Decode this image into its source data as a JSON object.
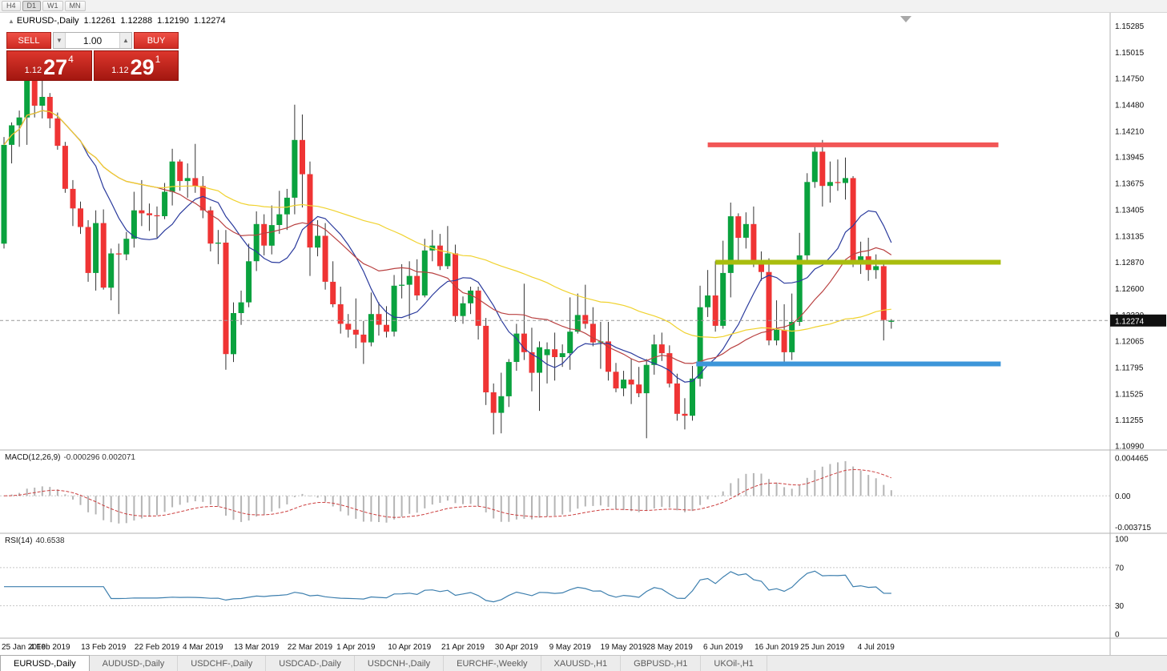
{
  "toolbar": {
    "timeframes": [
      "H4",
      "D1",
      "W1",
      "MN"
    ],
    "active": "D1"
  },
  "chart_header": {
    "collapse_icon": "▲",
    "symbol": "EURUSD-,Daily",
    "open": "1.12261",
    "high": "1.12288",
    "low": "1.12190",
    "close": "1.12274"
  },
  "trade_panel": {
    "sell_label": "SELL",
    "buy_label": "BUY",
    "volume": "1.00",
    "spinner_down_icon": "▼",
    "spinner_up_icon": "▲",
    "bid": {
      "prefix": "1.12",
      "big": "27",
      "pip": "4"
    },
    "ask": {
      "prefix": "1.12",
      "big": "29",
      "pip": "1"
    }
  },
  "price_tag": "1.12274",
  "tabs": [
    {
      "label": "EURUSD-,Daily",
      "active": true
    },
    {
      "label": "AUDUSD-,Daily",
      "active": false
    },
    {
      "label": "USDCHF-,Daily",
      "active": false
    },
    {
      "label": "USDCAD-,Daily",
      "active": false
    },
    {
      "label": "USDCNH-,Daily",
      "active": false
    },
    {
      "label": "EURCHF-,Weekly",
      "active": false
    },
    {
      "label": "XAUUSD-,H1",
      "active": false
    },
    {
      "label": "GBPUSD-,H1",
      "active": false
    },
    {
      "label": "UKOil-,H1",
      "active": false
    }
  ],
  "chart_data": {
    "type": "candlestick",
    "title": "EURUSD-,Daily",
    "ylim": [
      1.1095,
      1.1542
    ],
    "current_price": 1.12274,
    "price_ticks": [
      "1.15285",
      "1.15015",
      "1.14750",
      "1.14480",
      "1.14210",
      "1.13945",
      "1.13675",
      "1.13405",
      "1.13135",
      "1.12870",
      "1.12600",
      "1.12330",
      "1.12065",
      "1.11795",
      "1.11525",
      "1.11255",
      "1.10990"
    ],
    "date_ticks": [
      {
        "i": 0,
        "label": "25 Jan 2019"
      },
      {
        "i": 6,
        "label": "4 Feb 2019"
      },
      {
        "i": 13,
        "label": "13 Feb 2019"
      },
      {
        "i": 20,
        "label": "22 Feb 2019"
      },
      {
        "i": 26,
        "label": "4 Mar 2019"
      },
      {
        "i": 33,
        "label": "13 Mar 2019"
      },
      {
        "i": 40,
        "label": "22 Mar 2019"
      },
      {
        "i": 46,
        "label": "1 Apr 2019"
      },
      {
        "i": 53,
        "label": "10 Apr 2019"
      },
      {
        "i": 60,
        "label": "21 Apr 2019"
      },
      {
        "i": 67,
        "label": "30 Apr 2019"
      },
      {
        "i": 74,
        "label": "9 May 2019"
      },
      {
        "i": 81,
        "label": "19 May 2019"
      },
      {
        "i": 87,
        "label": "28 May 2019"
      },
      {
        "i": 94,
        "label": "6 Jun 2019"
      },
      {
        "i": 101,
        "label": "16 Jun 2019"
      },
      {
        "i": 107,
        "label": "25 Jun 2019"
      },
      {
        "i": 114,
        "label": "4 Jul 2019"
      }
    ],
    "candles": [
      [
        1.1306,
        1.1415,
        1.1301,
        1.1407
      ],
      [
        1.1407,
        1.143,
        1.1388,
        1.1427
      ],
      [
        1.1427,
        1.1442,
        1.1405,
        1.1435
      ],
      [
        1.1435,
        1.1488,
        1.1407,
        1.148
      ],
      [
        1.148,
        1.1489,
        1.1435,
        1.1447
      ],
      [
        1.1447,
        1.1484,
        1.1434,
        1.1456
      ],
      [
        1.1456,
        1.146,
        1.1424,
        1.1434
      ],
      [
        1.1434,
        1.144,
        1.1402,
        1.1406
      ],
      [
        1.1406,
        1.141,
        1.1358,
        1.1362
      ],
      [
        1.1362,
        1.1371,
        1.1324,
        1.1342
      ],
      [
        1.1342,
        1.1349,
        1.1316,
        1.1323
      ],
      [
        1.1323,
        1.133,
        1.1267,
        1.1276
      ],
      [
        1.1276,
        1.134,
        1.1258,
        1.1327
      ],
      [
        1.1327,
        1.1341,
        1.1259,
        1.1261
      ],
      [
        1.1261,
        1.1301,
        1.1248,
        1.1296
      ],
      [
        1.1296,
        1.1306,
        1.1234,
        1.1295
      ],
      [
        1.1295,
        1.1318,
        1.1289,
        1.1311
      ],
      [
        1.1311,
        1.1359,
        1.1302,
        1.134
      ],
      [
        1.134,
        1.1371,
        1.1324,
        1.1337
      ],
      [
        1.1337,
        1.1347,
        1.1319,
        1.1335
      ],
      [
        1.1335,
        1.1344,
        1.1312,
        1.1334
      ],
      [
        1.1334,
        1.1368,
        1.1331,
        1.1359
      ],
      [
        1.1359,
        1.1403,
        1.1345,
        1.139
      ],
      [
        1.139,
        1.1392,
        1.136,
        1.137
      ],
      [
        1.137,
        1.1388,
        1.1353,
        1.1373
      ],
      [
        1.1373,
        1.1408,
        1.1358,
        1.1365
      ],
      [
        1.1365,
        1.1375,
        1.1332,
        1.134
      ],
      [
        1.134,
        1.1344,
        1.1298,
        1.1306
      ],
      [
        1.1306,
        1.132,
        1.1285,
        1.1307
      ],
      [
        1.1307,
        1.132,
        1.1177,
        1.1193
      ],
      [
        1.1193,
        1.1246,
        1.1185,
        1.1235
      ],
      [
        1.1235,
        1.1258,
        1.1223,
        1.1246
      ],
      [
        1.1246,
        1.1306,
        1.1241,
        1.1288
      ],
      [
        1.1288,
        1.1339,
        1.1278,
        1.1326
      ],
      [
        1.1326,
        1.1336,
        1.1294,
        1.1304
      ],
      [
        1.1304,
        1.1345,
        1.1295,
        1.1325
      ],
      [
        1.1325,
        1.136,
        1.1316,
        1.1336
      ],
      [
        1.1336,
        1.1362,
        1.132,
        1.1353
      ],
      [
        1.1353,
        1.1448,
        1.1336,
        1.1412
      ],
      [
        1.1412,
        1.1438,
        1.1343,
        1.1377
      ],
      [
        1.1377,
        1.139,
        1.1273,
        1.1302
      ],
      [
        1.1302,
        1.133,
        1.1293,
        1.1314
      ],
      [
        1.1314,
        1.1327,
        1.1259,
        1.1267
      ],
      [
        1.1267,
        1.1288,
        1.1241,
        1.1244
      ],
      [
        1.1244,
        1.1262,
        1.1214,
        1.1224
      ],
      [
        1.1224,
        1.1234,
        1.121,
        1.1218
      ],
      [
        1.1218,
        1.125,
        1.1199,
        1.1213
      ],
      [
        1.1213,
        1.1227,
        1.1183,
        1.1205
      ],
      [
        1.1205,
        1.1256,
        1.1201,
        1.1234
      ],
      [
        1.1234,
        1.1246,
        1.1212,
        1.1223
      ],
      [
        1.1223,
        1.1242,
        1.121,
        1.1216
      ],
      [
        1.1216,
        1.1274,
        1.1211,
        1.1263
      ],
      [
        1.1263,
        1.1285,
        1.125,
        1.1264
      ],
      [
        1.1264,
        1.1288,
        1.1229,
        1.1273
      ],
      [
        1.1273,
        1.129,
        1.1248,
        1.1253
      ],
      [
        1.1253,
        1.1311,
        1.1251,
        1.1299
      ],
      [
        1.1299,
        1.132,
        1.1288,
        1.1304
      ],
      [
        1.1304,
        1.1316,
        1.1279,
        1.1283
      ],
      [
        1.1283,
        1.1324,
        1.128,
        1.1296
      ],
      [
        1.1296,
        1.1305,
        1.1226,
        1.1232
      ],
      [
        1.1232,
        1.1252,
        1.1224,
        1.1245
      ],
      [
        1.1245,
        1.1262,
        1.1234,
        1.1258
      ],
      [
        1.1258,
        1.1262,
        1.1208,
        1.1222
      ],
      [
        1.1222,
        1.123,
        1.1141,
        1.1154
      ],
      [
        1.1154,
        1.1163,
        1.1111,
        1.1133
      ],
      [
        1.1133,
        1.1174,
        1.1112,
        1.115
      ],
      [
        1.115,
        1.1188,
        1.1139,
        1.1185
      ],
      [
        1.1185,
        1.1224,
        1.1176,
        1.1214
      ],
      [
        1.1214,
        1.1265,
        1.1187,
        1.1195
      ],
      [
        1.1195,
        1.122,
        1.1155,
        1.1174
      ],
      [
        1.1174,
        1.1206,
        1.1135,
        1.12
      ],
      [
        1.1192,
        1.1205,
        1.1163,
        1.1198
      ],
      [
        1.1198,
        1.1215,
        1.1166,
        1.119
      ],
      [
        1.119,
        1.1203,
        1.118,
        1.1194
      ],
      [
        1.1194,
        1.1251,
        1.1177,
        1.1216
      ],
      [
        1.1216,
        1.1255,
        1.1214,
        1.1233
      ],
      [
        1.1233,
        1.1264,
        1.1219,
        1.1224
      ],
      [
        1.1224,
        1.1241,
        1.1201,
        1.1205
      ],
      [
        1.1205,
        1.1226,
        1.1178,
        1.1206
      ],
      [
        1.1206,
        1.1226,
        1.1166,
        1.1175
      ],
      [
        1.1175,
        1.1184,
        1.1154,
        1.1158
      ],
      [
        1.1158,
        1.1176,
        1.115,
        1.1167
      ],
      [
        1.1167,
        1.1188,
        1.1142,
        1.1162
      ],
      [
        1.1162,
        1.118,
        1.1149,
        1.1153
      ],
      [
        1.1153,
        1.1188,
        1.1107,
        1.1182
      ],
      [
        1.1182,
        1.1213,
        1.1172,
        1.1203
      ],
      [
        1.1203,
        1.1215,
        1.1186,
        1.1194
      ],
      [
        1.1194,
        1.1202,
        1.1159,
        1.1163
      ],
      [
        1.1163,
        1.1173,
        1.1125,
        1.1132
      ],
      [
        1.1132,
        1.1148,
        1.1116,
        1.113
      ],
      [
        1.113,
        1.1181,
        1.1125,
        1.1168
      ],
      [
        1.1168,
        1.1263,
        1.116,
        1.1241
      ],
      [
        1.1241,
        1.1279,
        1.1231,
        1.1253
      ],
      [
        1.1253,
        1.1288,
        1.1216,
        1.1222
      ],
      [
        1.1222,
        1.1309,
        1.1219,
        1.1276
      ],
      [
        1.1276,
        1.1348,
        1.1251,
        1.1334
      ],
      [
        1.1334,
        1.1337,
        1.1289,
        1.1312
      ],
      [
        1.1312,
        1.1338,
        1.1301,
        1.1326
      ],
      [
        1.1326,
        1.1344,
        1.1282,
        1.1288
      ],
      [
        1.1288,
        1.1298,
        1.1268,
        1.1277
      ],
      [
        1.1277,
        1.1291,
        1.1202,
        1.1207
      ],
      [
        1.1207,
        1.1248,
        1.1202,
        1.1218
      ],
      [
        1.1218,
        1.1244,
        1.1181,
        1.1195
      ],
      [
        1.1195,
        1.1255,
        1.1187,
        1.1226
      ],
      [
        1.1226,
        1.1317,
        1.1222,
        1.1294
      ],
      [
        1.1294,
        1.1378,
        1.1285,
        1.1369
      ],
      [
        1.1369,
        1.1406,
        1.1363,
        1.14
      ],
      [
        1.14,
        1.1412,
        1.1344,
        1.1365
      ],
      [
        1.1365,
        1.139,
        1.1348,
        1.1369
      ],
      [
        1.1369,
        1.1392,
        1.136,
        1.1368
      ],
      [
        1.1368,
        1.1394,
        1.1351,
        1.1373
      ],
      [
        1.1373,
        1.1375,
        1.1282,
        1.1285
      ],
      [
        1.1285,
        1.1308,
        1.1275,
        1.1293
      ],
      [
        1.1293,
        1.1312,
        1.1268,
        1.1279
      ],
      [
        1.1279,
        1.1295,
        1.127,
        1.1283
      ],
      [
        1.1283,
        1.1288,
        1.1207,
        1.1228
      ],
      [
        1.12261,
        1.12288,
        1.1219,
        1.12274
      ]
    ],
    "moving_averages": [
      {
        "name": "ma-fast-line",
        "period": 10,
        "color": "#2b3b9d"
      },
      {
        "name": "ma-mid-line",
        "period": 21,
        "color": "#b94141"
      },
      {
        "name": "ma-slow-line",
        "period": 50,
        "color": "#f0d22e"
      }
    ],
    "hlines": [
      {
        "name": "resistance-line-red",
        "price": 1.1407,
        "color": "#f25656",
        "width": 6,
        "from": 92,
        "to": 130
      },
      {
        "name": "mid-line-olive",
        "price": 1.1287,
        "color": "#a9bd0e",
        "width": 6,
        "from": 93,
        "to": 130.3
      },
      {
        "name": "support-line-blue",
        "price": 1.1183,
        "color": "#3d96d9",
        "width": 6,
        "from": 90.5,
        "to": 130.3
      }
    ],
    "macd": {
      "label": "MACD(12,26,9)",
      "values_text": "-0.000296 0.002071",
      "params": [
        12,
        26,
        9
      ],
      "ylim": [
        -0.0044,
        0.0054
      ],
      "ticks": [
        {
          "v": 0.004465,
          "label": "0.004465"
        },
        {
          "v": 0,
          "label": "0.00"
        },
        {
          "v": -0.003715,
          "label": "-0.003715"
        }
      ]
    },
    "rsi": {
      "label": "RSI(14)",
      "value_text": "40.6538",
      "period": 14,
      "ylim": [
        -4,
        106
      ],
      "levels": [
        70,
        30
      ],
      "ticks": [
        {
          "v": 100,
          "label": "100"
        },
        {
          "v": 70,
          "label": "70"
        },
        {
          "v": 30,
          "label": "30"
        },
        {
          "v": 0,
          "label": "0"
        }
      ]
    },
    "colors": {
      "up": "#0aa23e",
      "down": "#ef3434",
      "wick": "#333333",
      "price_line": "#999999",
      "macd_hist": "#b5b5b5",
      "macd_signal": "#cc3f3f",
      "rsi_line": "#3d7fae"
    }
  }
}
